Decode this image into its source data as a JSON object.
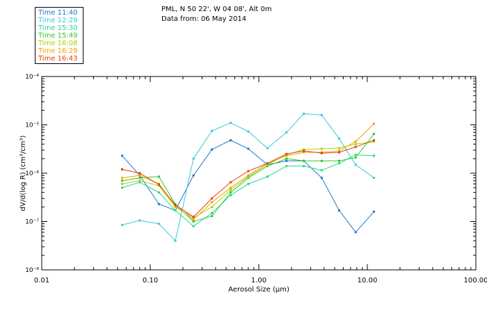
{
  "header": {
    "line1": "PML, N 50 22', W 04 08', Alt 0m",
    "line2": "Data from: 06 May 2014"
  },
  "legend": [
    {
      "label": "Time 11:40",
      "color": "#1f77c8"
    },
    {
      "label": "Time 12:29",
      "color": "#38c8d8"
    },
    {
      "label": "Time 15:30",
      "color": "#20d890"
    },
    {
      "label": "Time 15:49",
      "color": "#30c820"
    },
    {
      "label": "Time 16:08",
      "color": "#b0d000"
    },
    {
      "label": "Time 16:29",
      "color": "#f0a000"
    },
    {
      "label": "Time 16:43",
      "color": "#e04010"
    }
  ],
  "chart_data": {
    "type": "line",
    "xlabel": "Aerosol Size (µm)",
    "ylabel": "dV/d(log R) (cm³/cm³)",
    "xscale": "log",
    "yscale": "log",
    "xlim": [
      0.01,
      100.0
    ],
    "ylim": [
      1e-08,
      0.0001
    ],
    "x_tick_labels": [
      "0.01",
      "0.10",
      "1.00",
      "10.00",
      "100.00"
    ],
    "y_tick_labels": [
      "10⁻⁸",
      "10⁻⁷",
      "10⁻⁶",
      "10⁻⁵",
      "10⁻⁴"
    ],
    "grid": false,
    "series": [
      {
        "name": "Time 11:40",
        "color": "#1f77c8",
        "x": [
          0.055,
          0.08,
          0.12,
          0.17,
          0.25,
          0.37,
          0.55,
          0.8,
          1.2,
          1.8,
          2.6,
          3.8,
          5.5,
          7.8,
          11.5
        ],
        "y": [
          2.3e-06,
          9e-07,
          2.3e-07,
          1.7e-07,
          9e-07,
          3.1e-06,
          4.8e-06,
          3.2e-06,
          1.5e-06,
          1.8e-06,
          1.8e-06,
          8e-07,
          1.7e-07,
          6e-08,
          1.6e-07
        ]
      },
      {
        "name": "Time 12:29",
        "color": "#38c8d8",
        "x": [
          0.055,
          0.08,
          0.12,
          0.17,
          0.25,
          0.37,
          0.55,
          0.8,
          1.2,
          1.8,
          2.6,
          3.8,
          5.5,
          7.8,
          11.5
        ],
        "y": [
          8.5e-08,
          1.05e-07,
          9e-08,
          4e-08,
          2e-06,
          7.5e-06,
          1.1e-05,
          7.3e-06,
          3.3e-06,
          7e-06,
          1.7e-05,
          1.6e-05,
          5.2e-06,
          1.5e-06,
          8e-07
        ]
      },
      {
        "name": "Time 15:30",
        "color": "#20d890",
        "x": [
          0.055,
          0.08,
          0.12,
          0.17,
          0.25,
          0.37,
          0.55,
          0.8,
          1.2,
          1.8,
          2.6,
          3.8,
          5.5,
          7.8,
          11.5
        ],
        "y": [
          5e-07,
          6.5e-07,
          4e-07,
          1.7e-07,
          8e-08,
          1.5e-07,
          3.5e-07,
          6e-07,
          8.5e-07,
          1.4e-06,
          1.4e-06,
          1.15e-06,
          1.6e-06,
          2.4e-06,
          2.3e-06
        ]
      },
      {
        "name": "Time 15:49",
        "color": "#30c820",
        "x": [
          0.055,
          0.08,
          0.12,
          0.17,
          0.25,
          0.37,
          0.55,
          0.8,
          1.2,
          1.8,
          2.6,
          3.8,
          5.5,
          7.8,
          11.5
        ],
        "y": [
          7e-07,
          8e-07,
          8.5e-07,
          2.3e-07,
          1e-07,
          1.3e-07,
          4e-07,
          8e-07,
          1.4e-06,
          2e-06,
          1.8e-06,
          1.8e-06,
          1.8e-06,
          2.1e-06,
          6.5e-06
        ]
      },
      {
        "name": "Time 16:08",
        "color": "#b0d000",
        "x": [
          0.055,
          0.08,
          0.12,
          0.17,
          0.25,
          0.37,
          0.55,
          0.8,
          1.2,
          1.8,
          2.6,
          3.8,
          5.5,
          7.8,
          11.5
        ],
        "y": [
          6e-07,
          7e-07,
          5.5e-07,
          2e-07,
          1.2e-07,
          2e-07,
          4.5e-07,
          8.5e-07,
          1.5e-06,
          2.4e-06,
          3.1e-06,
          3.2e-06,
          3.3e-06,
          4e-06,
          4.5e-06
        ]
      },
      {
        "name": "Time 16:29",
        "color": "#f0a000",
        "x": [
          0.055,
          0.08,
          0.12,
          0.17,
          0.25,
          0.37,
          0.55,
          0.8,
          1.2,
          1.8,
          2.6,
          3.8,
          5.5,
          7.8,
          11.5
        ],
        "y": [
          8e-07,
          9e-07,
          6e-07,
          2.1e-07,
          1.1e-07,
          2.5e-07,
          5e-07,
          9e-07,
          1.6e-06,
          2.3e-06,
          2.7e-06,
          2.7e-06,
          2.9e-06,
          4.5e-06,
          1.05e-05
        ]
      },
      {
        "name": "Time 16:43",
        "color": "#e04010",
        "x": [
          0.055,
          0.08,
          0.12,
          0.17,
          0.25,
          0.37,
          0.55,
          0.8,
          1.2,
          1.8,
          2.6,
          3.8,
          5.5,
          7.8,
          11.5
        ],
        "y": [
          1.2e-06,
          1e-06,
          5.8e-07,
          2.2e-07,
          1.25e-07,
          3e-07,
          6.5e-07,
          1.1e-06,
          1.6e-06,
          2.5e-06,
          2.9e-06,
          2.6e-06,
          2.7e-06,
          3.5e-06,
          4.8e-06
        ]
      }
    ]
  }
}
